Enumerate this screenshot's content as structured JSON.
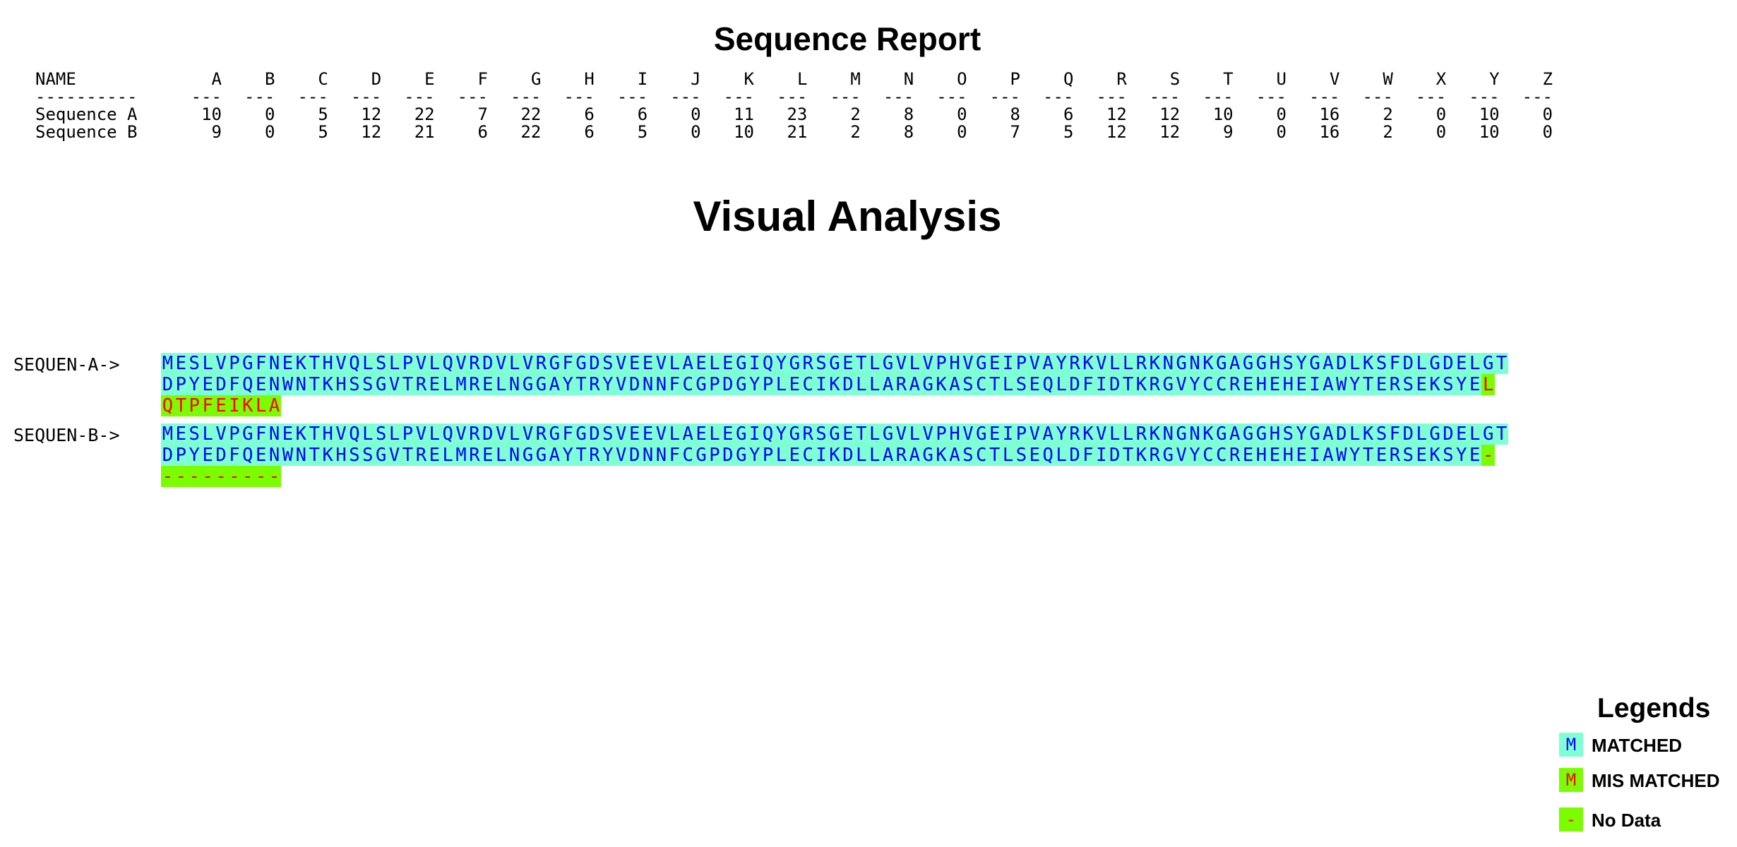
{
  "report_title": "Sequence Report",
  "visual_title": "Visual  Analysis",
  "table": {
    "name_header": "NAME",
    "name_dash": "----------",
    "columns": [
      "A",
      "B",
      "C",
      "D",
      "E",
      "F",
      "G",
      "H",
      "I",
      "J",
      "K",
      "L",
      "M",
      "N",
      "O",
      "P",
      "Q",
      "R",
      "S",
      "T",
      "U",
      "V",
      "W",
      "X",
      "Y",
      "Z"
    ],
    "col_dash": "---",
    "rows": [
      {
        "name": "Sequence A",
        "values": [
          "10",
          "0",
          "5",
          "12",
          "22",
          "7",
          "22",
          "6",
          "6",
          "0",
          "11",
          "23",
          "2",
          "8",
          "0",
          "8",
          "6",
          "12",
          "12",
          "10",
          "0",
          "16",
          "2",
          "0",
          "10",
          "0"
        ]
      },
      {
        "name": "Sequence B",
        "values": [
          "9",
          "0",
          "5",
          "12",
          "21",
          "6",
          "22",
          "6",
          "5",
          "0",
          "10",
          "21",
          "2",
          "8",
          "0",
          "7",
          "5",
          "12",
          "12",
          "9",
          "0",
          "16",
          "2",
          "0",
          "10",
          "0"
        ]
      }
    ]
  },
  "sequences": [
    {
      "label": "SEQUEN-A->",
      "lines": [
        {
          "text": "MESLVPGFNEKTHVQLSLPVLQVRDVLVRGFGDSVEEVLAELEGIQYGRSGETLGVLVPHVGEIPVAYRKVLLRKNGNKGAGGHSYGADLKSFDLGDELGT",
          "status": "matched"
        },
        {
          "text": "DPYEDFQENWNTKHSSGVTRELMRELNGGAYTRYVDNNFCGPDGYPLECIKDLLARAGKASCTLSEQLDFIDTKRGVYCCREHEHEIAWYTERSEKSYE",
          "status": "matched",
          "tail": "L",
          "tail_status": "mismatched"
        },
        {
          "text": "QTPFEIKLA",
          "status": "mismatched"
        }
      ]
    },
    {
      "label": "SEQUEN-B->",
      "lines": [
        {
          "text": "MESLVPGFNEKTHVQLSLPVLQVRDVLVRGFGDSVEEVLAELEGIQYGRSGETLGVLVPHVGEIPVAYRKVLLRKNGNKGAGGHSYGADLKSFDLGDELGT",
          "status": "matched"
        },
        {
          "text": "DPYEDFQENWNTKHSSGVTRELMRELNGGAYTRYVDNNFCGPDGYPLECIKDLLARAGKASCTLSEQLDFIDTKRGVYCCREHEHEIAWYTERSEKSYE",
          "status": "matched",
          "tail": "-",
          "tail_status": "nodata"
        },
        {
          "text": "---------",
          "status": "nodata"
        }
      ]
    }
  ],
  "legend": {
    "title": "Legends",
    "items": [
      {
        "symbol": "M",
        "label": "MATCHED",
        "status": "matched"
      },
      {
        "symbol": "M",
        "label": "MIS MATCHED",
        "status": "mismatched"
      },
      {
        "symbol": "-",
        "label": "No Data",
        "status": "nodata"
      }
    ]
  },
  "colors": {
    "matched_bg": "#7fffd4",
    "matched_fg": "#0000ff",
    "mismatched_bg": "#7cfc00",
    "mismatched_fg": "#ff0000",
    "nodata_bg": "#7cfc00",
    "nodata_fg": "#ff0000"
  }
}
